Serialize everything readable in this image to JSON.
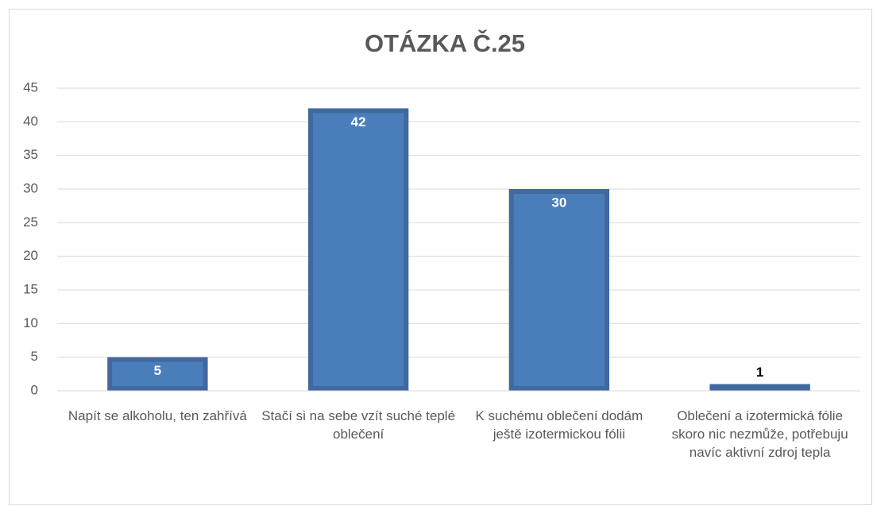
{
  "chart_data": {
    "type": "bar",
    "title": "OTÁZKA Č.25",
    "categories": [
      "Napít se alkoholu, ten zahřívá",
      "Stačí si na sebe vzít suché teplé oblečení",
      "K suchému oblečení dodám ještě izotermickou fólii",
      "Oblečení a izotermická fólie skoro nic nezmůže, potřebuju navíc aktivní zdroj tepla"
    ],
    "values": [
      5,
      42,
      30,
      1
    ],
    "color": "#4a7ebb",
    "ylim": [
      0,
      45
    ],
    "yticks": [
      0,
      5,
      10,
      15,
      20,
      25,
      30,
      35,
      40,
      45
    ],
    "grid": true
  }
}
